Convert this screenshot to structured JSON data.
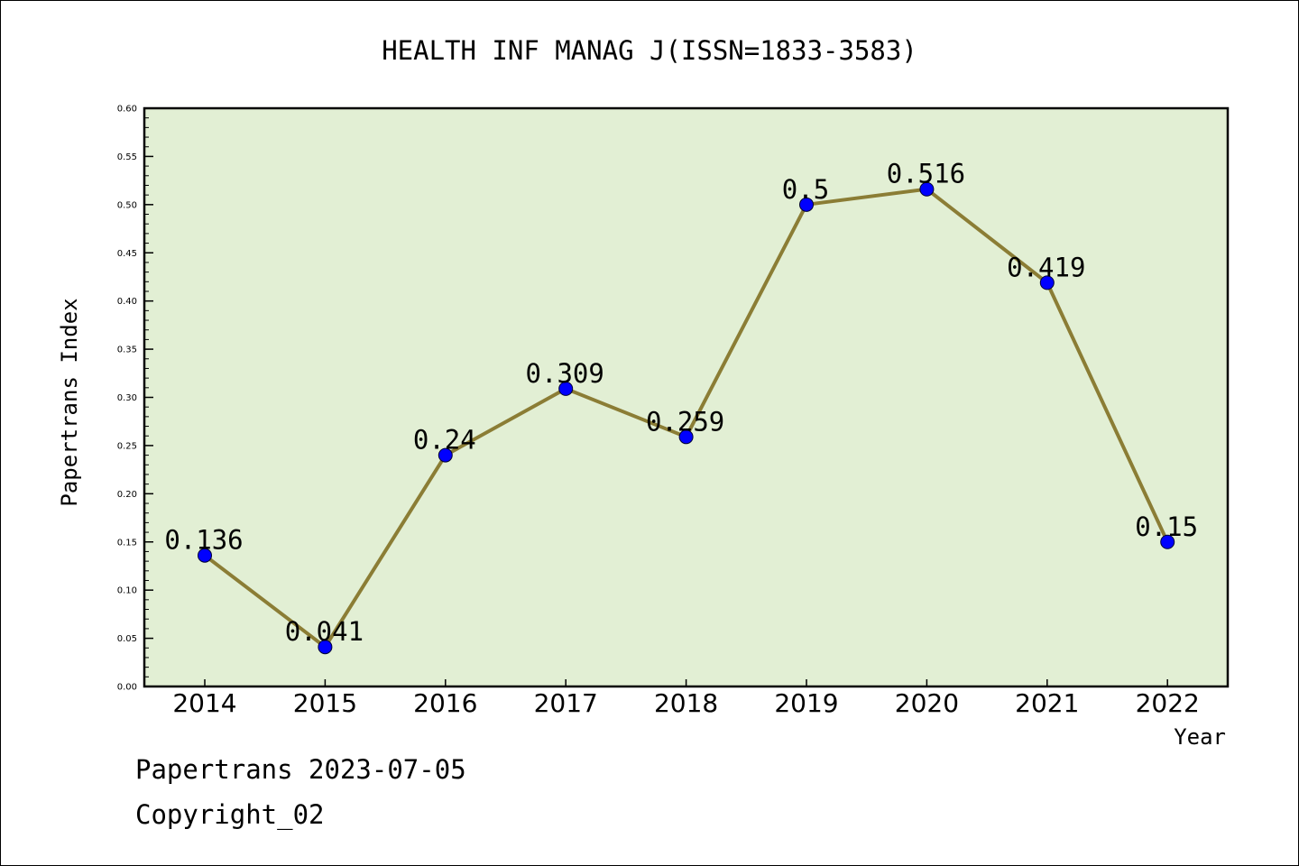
{
  "chart_data": {
    "type": "line",
    "title": "HEALTH INF MANAG J(ISSN=1833-3583)",
    "xlabel": "Year",
    "ylabel": "Papertrans Index",
    "categories": [
      "2014",
      "2015",
      "2016",
      "2017",
      "2018",
      "2019",
      "2020",
      "2021",
      "2022"
    ],
    "values": [
      0.136,
      0.041,
      0.24,
      0.309,
      0.259,
      0.5,
      0.516,
      0.419,
      0.15
    ],
    "value_labels": [
      "0.136",
      "0.041",
      "0.24",
      "0.309",
      "0.259",
      "0.5",
      "0.516",
      "0.419",
      "0.15"
    ],
    "ylim": [
      0,
      0.6
    ],
    "yticks": [
      "0.00",
      "0.05",
      "0.10",
      "0.15",
      "0.20",
      "0.25",
      "0.30",
      "0.35",
      "0.40",
      "0.45",
      "0.50",
      "0.55",
      "0.60"
    ],
    "grid": false,
    "colors": {
      "plot_background": "#e2efd4",
      "line": "#8b7d35",
      "marker": "#0000ff"
    }
  },
  "footer": {
    "line1": "Papertrans 2023-07-05",
    "line2": "Copyright_02"
  }
}
